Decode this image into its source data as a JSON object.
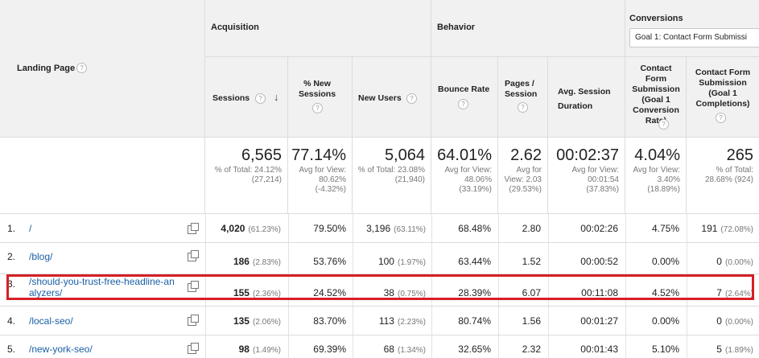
{
  "header": {
    "landing_page": "Landing Page",
    "help": "?",
    "acquisition": "Acquisition",
    "behavior": "Behavior",
    "conversions": "Conversions",
    "goal_select": "Goal 1: Contact Form Submissi",
    "sort_icon": "arrow-down",
    "columns": {
      "sessions": "Sessions",
      "pct_new_sessions": "% New Sessions",
      "new_users": "New Users",
      "bounce_rate": "Bounce Rate",
      "pages_session": "Pages / Session",
      "avg_session_duration": "Avg. Session Duration",
      "conv_rate": "Contact Form Submission (Goal 1 Conversion Rate)",
      "completions": "Contact Form Submission (Goal 1 Completions)"
    }
  },
  "totals": {
    "sessions": {
      "big": "6,565",
      "small": "% of Total: 24.12% (27,214)"
    },
    "pct_new_sessions": {
      "big": "77.14%",
      "small": "Avg for View: 80.62% (-4.32%)"
    },
    "new_users": {
      "big": "5,064",
      "small": "% of Total: 23.08% (21,940)"
    },
    "bounce_rate": {
      "big": "64.01%",
      "small": "Avg for View: 48.06% (33.19%)"
    },
    "pages_session": {
      "big": "2.62",
      "small": "Avg for View: 2.03 (29.53%)"
    },
    "avg_session_duration": {
      "big": "00:02:37",
      "small": "Avg for View: 00:01:54 (37.83%)"
    },
    "conv_rate": {
      "big": "4.04%",
      "small": "Avg for View: 3.40% (18.89%)"
    },
    "completions": {
      "big": "265",
      "small": "% of Total: 28.68% (924)"
    }
  },
  "rows": [
    {
      "idx": "1.",
      "page": "/",
      "sessions": "4,020",
      "sessions_pct": "(61.23%)",
      "pct_new": "79.50%",
      "new_users": "3,196",
      "new_users_pct": "(63.11%)",
      "bounce": "68.48%",
      "pages": "2.80",
      "duration": "00:02:26",
      "conv": "4.75%",
      "completions": "191",
      "completions_pct": "(72.08%)"
    },
    {
      "idx": "2.",
      "page": "/blog/",
      "sessions": "186",
      "sessions_pct": "(2.83%)",
      "pct_new": "53.76%",
      "new_users": "100",
      "new_users_pct": "(1.97%)",
      "bounce": "63.44%",
      "pages": "1.52",
      "duration": "00:00:52",
      "conv": "0.00%",
      "completions": "0",
      "completions_pct": "(0.00%)"
    },
    {
      "idx": "3.",
      "page_line1": "/should-you-trust-free-headline-an",
      "page_line2": "alyzers/",
      "sessions": "155",
      "sessions_pct": "(2.36%)",
      "pct_new": "24.52%",
      "new_users": "38",
      "new_users_pct": "(0.75%)",
      "bounce": "28.39%",
      "pages": "6.07",
      "duration": "00:11:08",
      "conv": "4.52%",
      "completions": "7",
      "completions_pct": "(2.64%)"
    },
    {
      "idx": "4.",
      "page": "/local-seo/",
      "sessions": "135",
      "sessions_pct": "(2.06%)",
      "pct_new": "83.70%",
      "new_users": "113",
      "new_users_pct": "(2.23%)",
      "bounce": "80.74%",
      "pages": "1.56",
      "duration": "00:01:27",
      "conv": "0.00%",
      "completions": "0",
      "completions_pct": "(0.00%)"
    },
    {
      "idx": "5.",
      "page": "/new-york-seo/",
      "sessions": "98",
      "sessions_pct": "(1.49%)",
      "pct_new": "69.39%",
      "new_users": "68",
      "new_users_pct": "(1.34%)",
      "bounce": "32.65%",
      "pages": "2.32",
      "duration": "00:01:43",
      "conv": "5.10%",
      "completions": "5",
      "completions_pct": "(1.89%)"
    }
  ],
  "colors": {
    "link": "#1a5fa5",
    "highlight": "#d61f26",
    "header_bg": "#f1f1f1"
  }
}
